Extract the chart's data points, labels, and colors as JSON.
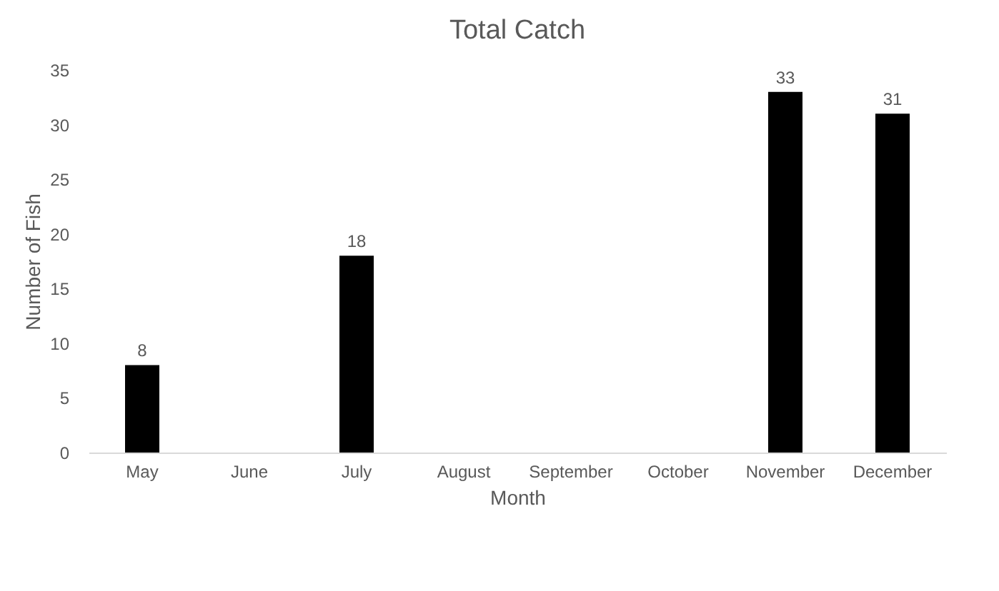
{
  "chart_data": {
    "type": "bar",
    "title": "Total Catch",
    "xlabel": "Month",
    "ylabel": "Number of Fish",
    "categories": [
      "May",
      "June",
      "July",
      "August",
      "September",
      "October",
      "November",
      "December"
    ],
    "values": [
      8,
      null,
      18,
      null,
      null,
      null,
      33,
      31
    ],
    "color": "#000000",
    "ylim": [
      0,
      35
    ],
    "yticks": [
      0,
      5,
      10,
      15,
      20,
      25,
      30,
      35
    ],
    "grid": false,
    "data_labels": true
  }
}
